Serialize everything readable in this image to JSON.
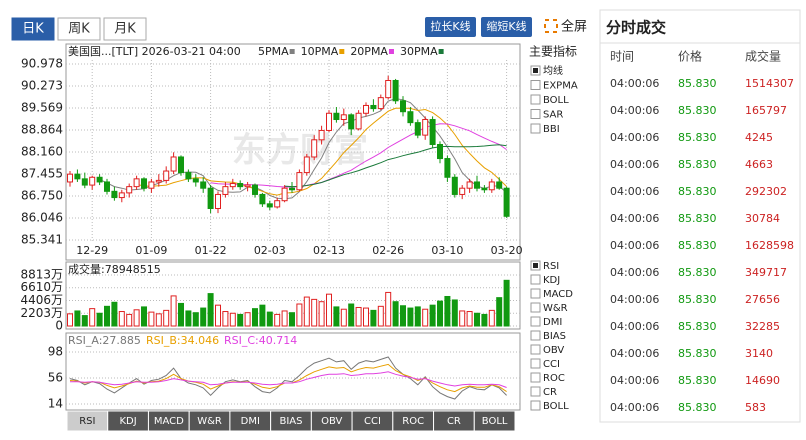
{
  "tabs": {
    "items": [
      "日K",
      "周K",
      "月K"
    ],
    "active": 0
  },
  "buttons": [
    "拉长K线",
    "缩短K线"
  ],
  "fullscreen": "全屏",
  "chart_data": [
    {
      "type": "candlestick",
      "title": "美国国...[TLT] 2026-03-21 04:00",
      "watermark": "东方财富",
      "ma": [
        {
          "name": "5PMA",
          "color": "#808080"
        },
        {
          "name": "10PMA",
          "color": "#e8a000"
        },
        {
          "name": "20PMA",
          "color": "#e040e0"
        },
        {
          "name": "30PMA",
          "color": "#1a7a3a"
        }
      ],
      "up_color": "#e02020",
      "down_color": "#119911",
      "categories": [
        null,
        null,
        null,
        "12-29",
        null,
        null,
        null,
        null,
        null,
        null,
        null,
        "01-09",
        null,
        null,
        null,
        null,
        null,
        null,
        null,
        "01-22",
        null,
        null,
        null,
        null,
        null,
        null,
        null,
        "02-03",
        null,
        null,
        null,
        null,
        null,
        null,
        null,
        "02-13",
        null,
        null,
        null,
        null,
        null,
        null,
        null,
        "02-26",
        null,
        null,
        null,
        null,
        null,
        null,
        null,
        "03-10",
        null,
        null,
        null,
        null,
        null,
        null,
        null,
        "03-20"
      ],
      "ohlc": [
        [
          87.2,
          87.55,
          87.05,
          87.45
        ],
        [
          87.45,
          87.6,
          87.2,
          87.3
        ],
        [
          87.3,
          87.5,
          87.0,
          87.1
        ],
        [
          87.1,
          87.4,
          86.95,
          87.35
        ],
        [
          87.35,
          87.45,
          87.1,
          87.2
        ],
        [
          87.2,
          87.3,
          86.8,
          86.9
        ],
        [
          86.9,
          87.05,
          86.6,
          86.7
        ],
        [
          86.7,
          86.95,
          86.55,
          86.85
        ],
        [
          86.85,
          87.15,
          86.7,
          87.05
        ],
        [
          87.05,
          87.4,
          86.95,
          87.3
        ],
        [
          87.3,
          87.35,
          86.9,
          87.0
        ],
        [
          87.0,
          87.3,
          86.85,
          87.2
        ],
        [
          87.2,
          87.45,
          87.05,
          87.25
        ],
        [
          87.25,
          87.7,
          87.15,
          87.55
        ],
        [
          87.55,
          88.15,
          87.45,
          88.0
        ],
        [
          88.0,
          88.05,
          87.4,
          87.5
        ],
        [
          87.5,
          87.6,
          87.2,
          87.3
        ],
        [
          87.3,
          87.45,
          87.05,
          87.2
        ],
        [
          87.2,
          87.35,
          86.85,
          87.0
        ],
        [
          87.0,
          87.1,
          86.2,
          86.35
        ],
        [
          86.35,
          86.9,
          86.2,
          86.8
        ],
        [
          86.8,
          87.2,
          86.7,
          87.05
        ],
        [
          87.05,
          87.3,
          86.95,
          87.15
        ],
        [
          87.15,
          87.25,
          86.95,
          87.05
        ],
        [
          87.05,
          87.2,
          86.9,
          87.1
        ],
        [
          87.1,
          87.15,
          86.7,
          86.8
        ],
        [
          86.8,
          86.85,
          86.4,
          86.5
        ],
        [
          86.5,
          86.6,
          86.3,
          86.4
        ],
        [
          86.4,
          86.7,
          86.35,
          86.6
        ],
        [
          86.6,
          87.1,
          86.55,
          87.0
        ],
        [
          87.0,
          87.2,
          86.85,
          86.95
        ],
        [
          86.95,
          87.6,
          86.9,
          87.5
        ],
        [
          87.5,
          88.1,
          87.4,
          88.0
        ],
        [
          88.0,
          88.7,
          87.9,
          88.55
        ],
        [
          88.55,
          89.0,
          88.4,
          88.85
        ],
        [
          88.85,
          89.5,
          88.8,
          89.4
        ],
        [
          89.4,
          89.6,
          89.1,
          89.2
        ],
        [
          89.2,
          89.55,
          89.0,
          89.35
        ],
        [
          89.35,
          89.4,
          88.7,
          88.9
        ],
        [
          88.9,
          89.5,
          88.85,
          89.4
        ],
        [
          89.4,
          89.75,
          89.3,
          89.65
        ],
        [
          89.65,
          89.85,
          89.45,
          89.55
        ],
        [
          89.55,
          90.0,
          89.5,
          89.9
        ],
        [
          89.9,
          90.6,
          89.85,
          90.45
        ],
        [
          90.45,
          90.5,
          89.7,
          89.8
        ],
        [
          89.8,
          89.95,
          89.3,
          89.45
        ],
        [
          89.45,
          89.6,
          89.0,
          89.1
        ],
        [
          89.1,
          89.2,
          88.6,
          88.7
        ],
        [
          88.7,
          89.3,
          88.55,
          89.2
        ],
        [
          89.2,
          89.3,
          88.3,
          88.4
        ],
        [
          88.4,
          88.5,
          87.8,
          87.95
        ],
        [
          87.95,
          88.05,
          87.2,
          87.35
        ],
        [
          87.35,
          87.45,
          86.7,
          86.8
        ],
        [
          86.8,
          87.1,
          86.65,
          87.0
        ],
        [
          87.0,
          87.3,
          86.85,
          87.2
        ],
        [
          87.2,
          87.4,
          86.9,
          87.0
        ],
        [
          87.0,
          87.1,
          86.85,
          86.95
        ],
        [
          86.95,
          87.3,
          86.85,
          87.2
        ],
        [
          87.2,
          87.35,
          86.95,
          87.0
        ],
        [
          87.0,
          87.05,
          86.05,
          86.1
        ]
      ],
      "ylim": [
        85.341,
        90.978
      ],
      "yticks": [
        90.978,
        90.273,
        89.569,
        88.864,
        {
          "value": 88.16,
          "label": "88.160"
        },
        87.455,
        {
          "value": 86.75,
          "label": "86.750"
        },
        86.046,
        85.341
      ],
      "grid": true
    },
    {
      "type": "bar",
      "title": "成交量:78948515",
      "values": [
        2100,
        2600,
        1800,
        3000,
        2200,
        3400,
        4100,
        2500,
        2000,
        2800,
        3300,
        2400,
        2100,
        2700,
        5200,
        3900,
        2600,
        2300,
        3100,
        5600,
        3600,
        2500,
        2200,
        2000,
        2300,
        3000,
        3600,
        2400,
        2000,
        2600,
        2300,
        3800,
        5000,
        4600,
        4200,
        5500,
        3300,
        2900,
        3800,
        3200,
        3100,
        2700,
        3400,
        5800,
        4200,
        3500,
        3100,
        3300,
        2900,
        3600,
        4300,
        5100,
        4500,
        2600,
        2500,
        2200,
        2000,
        2700,
        4900,
        7894.8515
      ],
      "ylim": [
        0,
        8813
      ],
      "yticks": [
        {
          "value": 8813,
          "label": "8813万"
        },
        {
          "value": 6610,
          "label": "6610万"
        },
        {
          "value": 4406,
          "label": "4406万"
        },
        {
          "value": 2203,
          "label": "2203万"
        },
        0
      ],
      "grid": true
    },
    {
      "type": "line",
      "series": [
        {
          "name": "RSI_A:27.885",
          "color": "#777777",
          "values": [
            55,
            52,
            45,
            50,
            47,
            38,
            32,
            40,
            48,
            55,
            46,
            52,
            54,
            60,
            72,
            55,
            48,
            45,
            40,
            28,
            40,
            50,
            53,
            50,
            52,
            42,
            34,
            32,
            40,
            52,
            50,
            60,
            72,
            80,
            84,
            88,
            82,
            84,
            70,
            80,
            84,
            82,
            86,
            90,
            72,
            62,
            55,
            45,
            58,
            42,
            32,
            26,
            22,
            35,
            42,
            38,
            37,
            45,
            40,
            27.885
          ]
        },
        {
          "name": "RSI_B:34.046",
          "color": "#e8a000",
          "values": [
            52,
            51,
            48,
            50,
            49,
            44,
            40,
            43,
            47,
            51,
            48,
            50,
            51,
            55,
            62,
            55,
            51,
            49,
            46,
            38,
            43,
            48,
            50,
            49,
            50,
            46,
            41,
            39,
            42,
            48,
            48,
            53,
            60,
            66,
            70,
            74,
            72,
            73,
            66,
            70,
            73,
            72,
            75,
            78,
            68,
            62,
            58,
            52,
            56,
            48,
            42,
            37,
            34,
            40,
            43,
            41,
            41,
            45,
            42,
            34.046
          ]
        },
        {
          "name": "RSI_C:40.714",
          "color": "#e040e0",
          "values": [
            50,
            50,
            49,
            50,
            49,
            47,
            45,
            46,
            48,
            50,
            49,
            49,
            50,
            52,
            55,
            53,
            51,
            50,
            49,
            45,
            46,
            48,
            49,
            49,
            49,
            48,
            46,
            45,
            46,
            48,
            48,
            50,
            54,
            57,
            60,
            62,
            62,
            63,
            60,
            61,
            63,
            63,
            64,
            66,
            62,
            59,
            57,
            54,
            55,
            51,
            48,
            45,
            43,
            45,
            46,
            45,
            45,
            46,
            45,
            40.714
          ]
        }
      ],
      "ylim": [
        14,
        98
      ],
      "yticks": [
        98,
        56,
        14
      ],
      "grid": true
    }
  ],
  "main_indicators": {
    "title": "主要指标",
    "items": [
      "均线",
      "EXPMA",
      "BOLL",
      "SAR",
      "BBI"
    ],
    "checked": 0
  },
  "sub_indicators": {
    "items": [
      "RSI",
      "KDJ",
      "MACD",
      "W&R",
      "DMI",
      "BIAS",
      "OBV",
      "CCI",
      "ROC",
      "CR",
      "BOLL"
    ],
    "checked": 0
  },
  "bottom_tabs": {
    "items": [
      "RSI",
      "KDJ",
      "MACD",
      "W&R",
      "DMI",
      "BIAS",
      "OBV",
      "CCI",
      "ROC",
      "CR",
      "BOLL"
    ],
    "active": 0
  },
  "trades": {
    "title": "分时成交",
    "columns": [
      "时间",
      "价格",
      "成交量"
    ],
    "rows": [
      [
        "04:00:06",
        "85.830",
        1514307
      ],
      [
        "04:00:06",
        "85.830",
        165797
      ],
      [
        "04:00:06",
        "85.830",
        4245
      ],
      [
        "04:00:06",
        "85.830",
        4663
      ],
      [
        "04:00:06",
        "85.830",
        292302
      ],
      [
        "04:00:06",
        "85.830",
        30784
      ],
      [
        "04:00:06",
        "85.830",
        1628598
      ],
      [
        "04:00:06",
        "85.830",
        349717
      ],
      [
        "04:00:06",
        "85.830",
        27656
      ],
      [
        "04:00:06",
        "85.830",
        32285
      ],
      [
        "04:00:06",
        "85.830",
        3140
      ],
      [
        "04:00:06",
        "85.830",
        14690
      ],
      [
        "04:00:06",
        "85.830",
        583
      ]
    ]
  }
}
